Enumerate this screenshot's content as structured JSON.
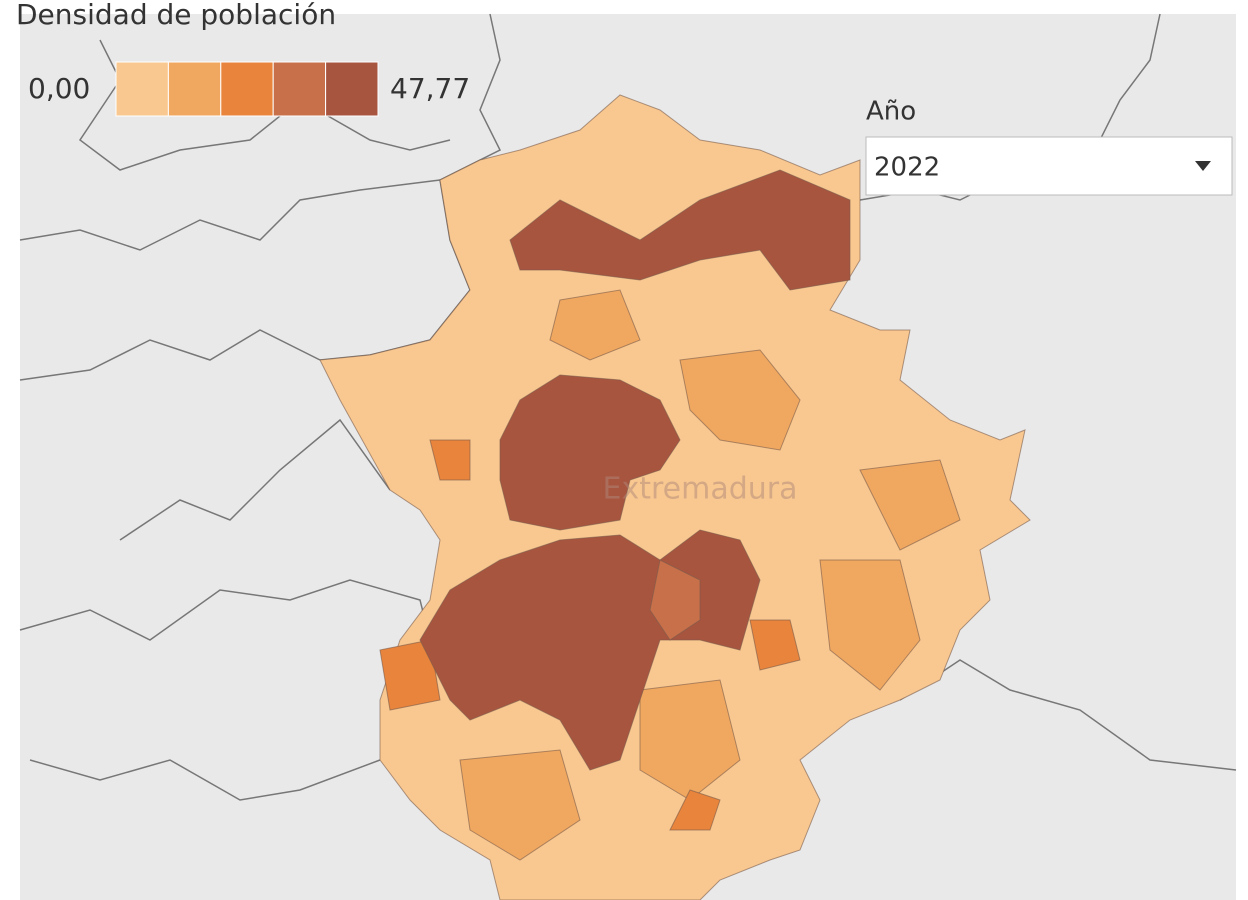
{
  "title": "Densidad de población",
  "legend": {
    "min_label": "0,00",
    "max_label": "47,77",
    "colors": [
      "#f9c890",
      "#f0a860",
      "#e8843c",
      "#c8704a",
      "#a85540"
    ]
  },
  "filter": {
    "label": "Año",
    "value": "2022"
  },
  "map_label": "Extremadura"
}
